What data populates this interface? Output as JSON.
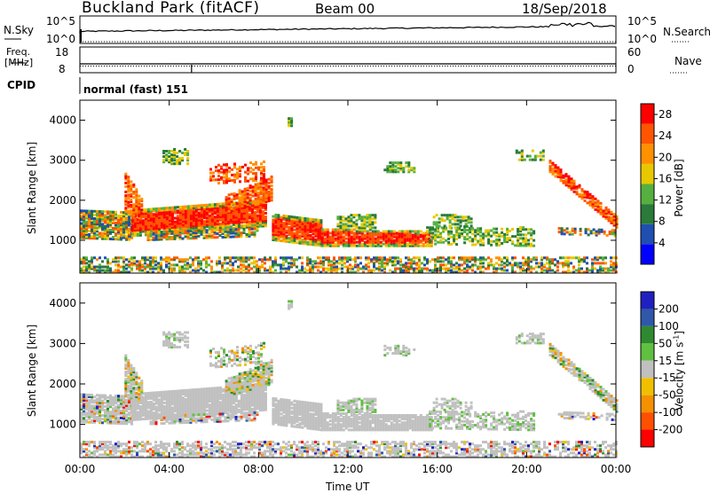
{
  "header": {
    "site": "Buckland Park (fitACF)",
    "beam": "Beam 00",
    "date": "18/Sep/2018"
  },
  "top_panels": {
    "nsky_label": "N.Sky",
    "nsky_hi": "10^5",
    "nsky_lo": "10^0",
    "nsearch_label": "N.Search",
    "nsearch_hi": "10^5",
    "nsearch_lo": "10^0",
    "freq_label_1": "Freq.",
    "freq_label_2": "[MHz]",
    "freq_hi": "18",
    "freq_lo": "8",
    "nave_label": "Nave",
    "nave_hi": "60",
    "nave_lo": "0",
    "cpid_label": "CPID",
    "cpid_value": "normal (fast) 151"
  },
  "colors": {
    "power": [
      "#0000ff",
      "#1f4fb0",
      "#2a7a3a",
      "#55b040",
      "#e8c800",
      "#ff9000",
      "#ff5500",
      "#ff0000"
    ],
    "velocity": [
      "#2020c0",
      "#2f58a8",
      "#2f8a2f",
      "#60c040",
      "#c0c0c0",
      "#f0c000",
      "#f59000",
      "#ff5000",
      "#ff0000"
    ]
  },
  "chart_data": [
    {
      "type": "heatmap",
      "title": "",
      "xlabel": "Time UT",
      "ylabel": "Slant Range [km]",
      "xlim": [
        "00:00",
        "24:00"
      ],
      "ylim": [
        180,
        4500
      ],
      "x_ticks": [
        "00:00",
        "04:00",
        "08:00",
        "12:00",
        "16:00",
        "20:00",
        "00:00"
      ],
      "y_ticks": [
        1000,
        2000,
        3000,
        4000
      ],
      "colorbar": {
        "label": "Power [dB]",
        "ticks": [
          4,
          8,
          12,
          16,
          20,
          24,
          28
        ],
        "range": [
          0,
          30
        ]
      }
    },
    {
      "type": "heatmap",
      "title": "",
      "xlabel": "Time UT",
      "ylabel": "Slant Range [km]",
      "xlim": [
        "00:00",
        "24:00"
      ],
      "ylim": [
        180,
        4500
      ],
      "x_ticks": [
        "00:00",
        "04:00",
        "08:00",
        "12:00",
        "16:00",
        "20:00",
        "00:00"
      ],
      "y_ticks": [
        1000,
        2000,
        3000,
        4000
      ],
      "colorbar": {
        "label": "Velocity [m s^-1]",
        "ticks": [
          200,
          100,
          50,
          15,
          -15,
          -50,
          -100,
          -200
        ]
      }
    }
  ]
}
